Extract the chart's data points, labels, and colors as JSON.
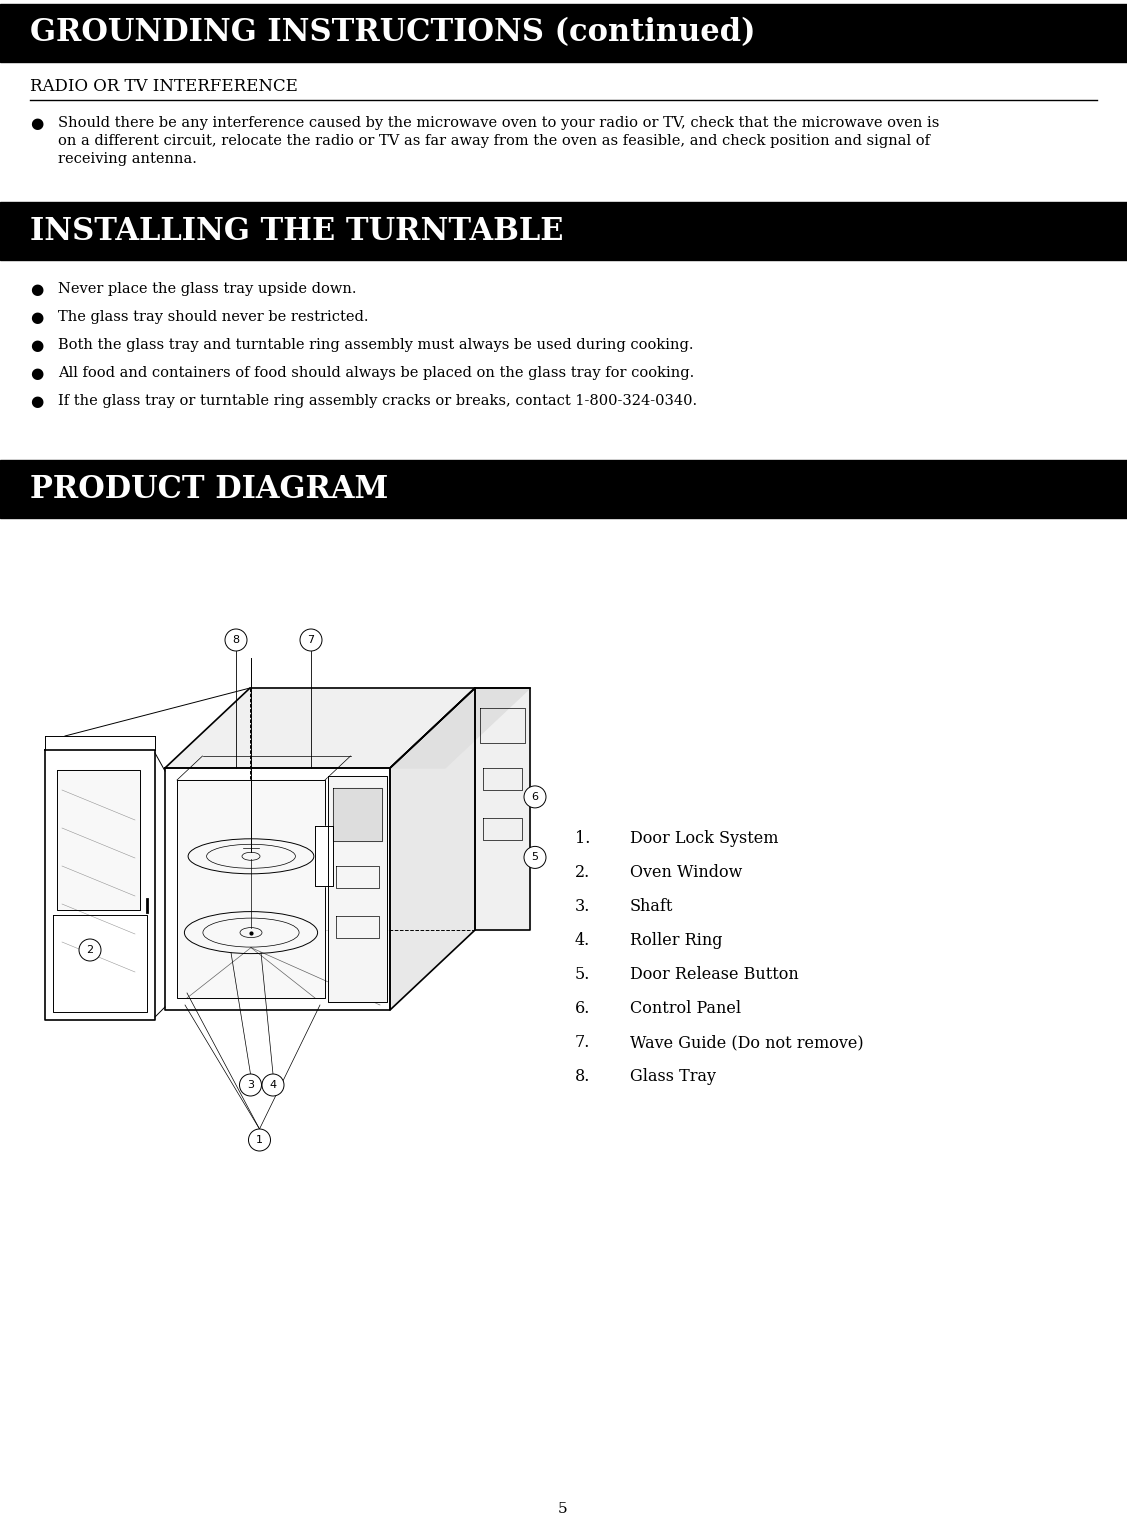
{
  "page_title": "GROUNDING INSTRUCTIONS (continued)",
  "section1_title": "RADIO OR TV INTERFERENCE",
  "section1_line1": "Should there be any interference caused by the microwave oven to your radio or TV, check that the microwave oven is",
  "section1_line2": "on a different circuit, relocate the radio or TV as far away from the oven as feasible, and check position and signal of",
  "section1_line3": "receiving antenna.",
  "section2_title": "INSTALLING THE TURNTABLE",
  "section2_bullets": [
    "Never place the glass tray upside down.",
    "The glass tray should never be restricted.",
    "Both the glass tray and turntable ring assembly must always be used during cooking.",
    "All food and containers of food should always be placed on the glass tray for cooking.",
    "If the glass tray or turntable ring assembly cracks or breaks, contact 1-800-324-0340."
  ],
  "section3_title": "PRODUCT DIAGRAM",
  "diagram_items": [
    [
      "1.",
      "Door Lock System"
    ],
    [
      "2.",
      "Oven Window"
    ],
    [
      "3.",
      "Shaft"
    ],
    [
      "4.",
      "Roller Ring"
    ],
    [
      "5.",
      "Door Release Button"
    ],
    [
      "6.",
      "Control Panel"
    ],
    [
      "7.",
      "Wave Guide (Do not remove)"
    ],
    [
      "8.",
      "Glass Tray"
    ]
  ],
  "page_number": "5",
  "header_bg": "#000000",
  "header_text_color": "#ffffff",
  "body_text_color": "#000000",
  "bg_color": "#ffffff"
}
